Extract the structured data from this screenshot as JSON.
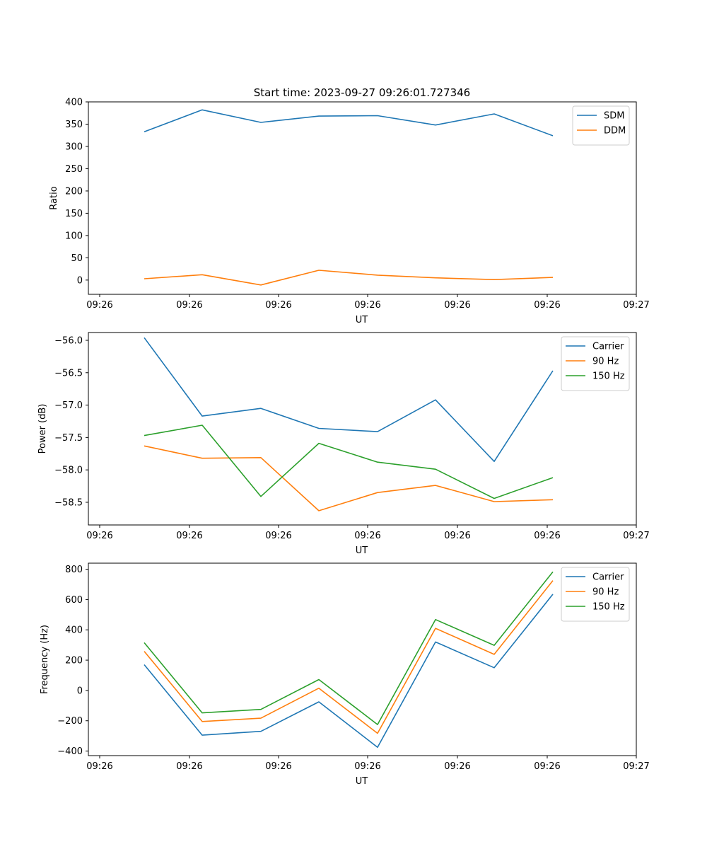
{
  "title": "Start time: 2023-09-27 09:26:01.727346",
  "colors": {
    "blue": "#1f77b4",
    "orange": "#ff7f0e",
    "green": "#2ca02c"
  },
  "chart_data": [
    {
      "type": "line",
      "xlabel": "UT",
      "ylabel": "Ratio",
      "x_ticks": [
        "09:26",
        "09:26",
        "09:26",
        "09:26",
        "09:26",
        "09:26",
        "09:27"
      ],
      "y_ticks": [
        "0",
        "50",
        "100",
        "150",
        "200",
        "250",
        "300",
        "350",
        "400"
      ],
      "ylim": [
        -32,
        400
      ],
      "legend": "top-right",
      "series": [
        {
          "name": "SDM",
          "color": "#1f77b4",
          "values": [
            333,
            382,
            354,
            368,
            369,
            348,
            373,
            324
          ]
        },
        {
          "name": "DDM",
          "color": "#ff7f0e",
          "values": [
            3,
            12,
            -11,
            22,
            11,
            5,
            1,
            6
          ]
        }
      ]
    },
    {
      "type": "line",
      "xlabel": "UT",
      "ylabel": "Power (dB)",
      "x_ticks": [
        "09:26",
        "09:26",
        "09:26",
        "09:26",
        "09:26",
        "09:26",
        "09:27"
      ],
      "y_ticks": [
        "−56.0",
        "−56.5",
        "−57.0",
        "−57.5",
        "−58.0",
        "−58.5"
      ],
      "ylim": [
        -58.85,
        -55.88
      ],
      "legend": "top-right",
      "series": [
        {
          "name": "Carrier",
          "color": "#1f77b4",
          "values": [
            -55.96,
            -57.17,
            -57.05,
            -57.36,
            -57.41,
            -56.92,
            -57.87,
            -56.47
          ]
        },
        {
          "name": "90 Hz",
          "color": "#ff7f0e",
          "values": [
            -57.63,
            -57.82,
            -57.81,
            -58.63,
            -58.35,
            -58.24,
            -58.49,
            -58.46
          ]
        },
        {
          "name": "150 Hz",
          "color": "#2ca02c",
          "values": [
            -57.47,
            -57.31,
            -58.41,
            -57.59,
            -57.88,
            -57.99,
            -58.44,
            -58.12
          ]
        }
      ]
    },
    {
      "type": "line",
      "xlabel": "UT",
      "ylabel": "Frequency (Hz)",
      "x_ticks": [
        "09:26",
        "09:26",
        "09:26",
        "09:26",
        "09:26",
        "09:26",
        "09:27"
      ],
      "y_ticks": [
        "−400",
        "−200",
        "0",
        "200",
        "400",
        "600",
        "800"
      ],
      "ylim": [
        -430,
        840
      ],
      "legend": "top-right",
      "series": [
        {
          "name": "Carrier",
          "color": "#1f77b4",
          "values": [
            170,
            -295,
            -270,
            -75,
            -375,
            320,
            150,
            635
          ]
        },
        {
          "name": "90 Hz",
          "color": "#ff7f0e",
          "values": [
            258,
            -205,
            -183,
            15,
            -283,
            410,
            238,
            725
          ]
        },
        {
          "name": "150 Hz",
          "color": "#2ca02c",
          "values": [
            315,
            -148,
            -125,
            72,
            -225,
            468,
            298,
            783
          ]
        }
      ]
    }
  ]
}
